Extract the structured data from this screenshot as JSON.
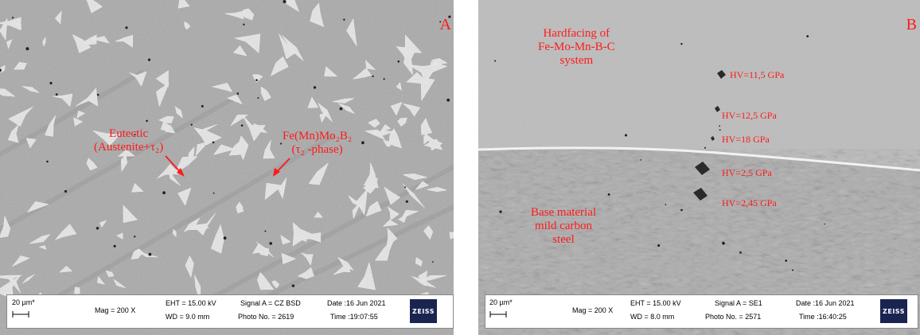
{
  "panel_a": {
    "letter": "A",
    "label_eutectic": [
      "Eutectic",
      "(Austenite+τ₂)"
    ],
    "label_phase": [
      "Fe(Mn)Mo₂B₂",
      "(τ₂ -phase)"
    ],
    "info": {
      "scale": "20 µm*",
      "mag": "Mag =  200 X",
      "eht": "EHT = 15.00 kV",
      "wd": "WD = 9.0 mm",
      "signal": "Signal A = CZ BSD",
      "photo": "Photo No. = 2619",
      "date": "Date :16 Jun 2021",
      "time": "Time :19:07:55",
      "logo": "ZEISS"
    }
  },
  "panel_b": {
    "letter": "B",
    "label_hardfacing": [
      "Hardfacing of",
      "Fe-Mo-Mn-B-C",
      "system"
    ],
    "label_base": [
      "Base material",
      "mild carbon",
      "steel"
    ],
    "hardness": [
      "HV=11,5 GPa",
      "HV=12,5 GPa",
      "HV=18 GPa",
      "HV=2,5 GPa",
      "HV=2,45 GPa"
    ],
    "info": {
      "scale": "20 µm*",
      "mag": "Mag =  200 X",
      "eht": "EHT = 15.00 kV",
      "wd": "WD = 8.0 mm",
      "signal": "Signal A = SE1",
      "photo": "Photo No. = 2571",
      "date": "Date :16 Jun 2021",
      "time": "Time :16:40:25",
      "logo": "ZEISS"
    }
  }
}
